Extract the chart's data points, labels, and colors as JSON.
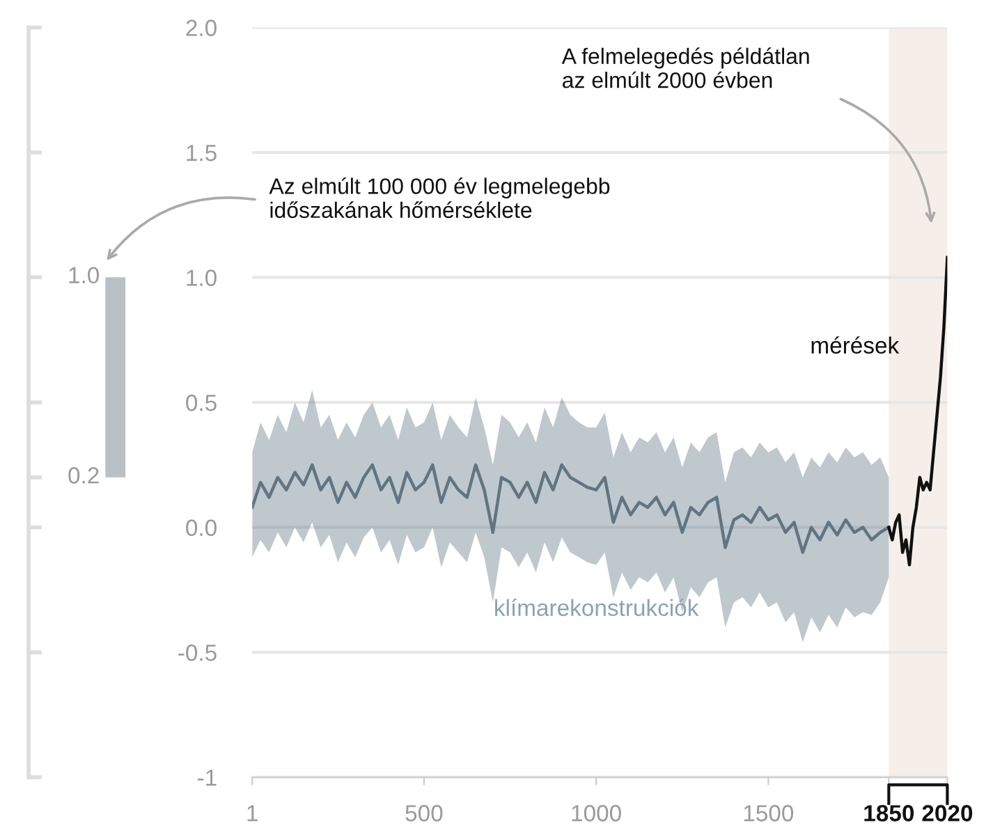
{
  "chart_data": [
    {
      "type": "other",
      "annotations": [
        "1.0",
        "0.2"
      ]
    },
    {
      "type": "line",
      "xlim": [
        1,
        2020
      ],
      "ylim": [
        -1,
        2
      ],
      "xticks": [
        1,
        500,
        1000,
        1500,
        1850,
        2020
      ],
      "yticks": [
        {
          "value": -1,
          "label": "-1"
        },
        {
          "value": -0.5,
          "label": "-0.5"
        },
        {
          "value": 0,
          "label": "0.0"
        },
        {
          "value": 0.5,
          "label": "0.5"
        },
        {
          "value": 1,
          "label": "1.0"
        },
        {
          "value": 1.5,
          "label": "1.5"
        },
        {
          "value": 2,
          "label": "2.0"
        }
      ],
      "grid": "y",
      "bands": [
        {
          "axis": "x",
          "from": 1850,
          "to": 2020,
          "color": "#f6efe9"
        }
      ],
      "annotations": [
        "A felmelegedés példátlan\naz elmúlt 2000 évben",
        "Az elmúlt 100 000 év legmelegebb\nidőszakának hőmérséklete"
      ],
      "series": [
        {
          "name": "klímarekonstrukciók",
          "color": "#5f7583",
          "x": [
            1,
            25,
            50,
            75,
            100,
            125,
            150,
            175,
            200,
            225,
            250,
            275,
            300,
            325,
            350,
            375,
            400,
            425,
            450,
            475,
            500,
            525,
            550,
            575,
            600,
            625,
            650,
            675,
            700,
            725,
            750,
            775,
            800,
            825,
            850,
            875,
            900,
            925,
            950,
            975,
            1000,
            1025,
            1050,
            1075,
            1100,
            1125,
            1150,
            1175,
            1200,
            1225,
            1250,
            1275,
            1300,
            1325,
            1350,
            1375,
            1400,
            1425,
            1450,
            1475,
            1500,
            1525,
            1550,
            1575,
            1600,
            1625,
            1650,
            1675,
            1700,
            1725,
            1750,
            1775,
            1800,
            1825,
            1850
          ],
          "values": [
            0.08,
            0.18,
            0.12,
            0.2,
            0.15,
            0.22,
            0.17,
            0.25,
            0.15,
            0.2,
            0.1,
            0.18,
            0.12,
            0.2,
            0.25,
            0.15,
            0.2,
            0.1,
            0.22,
            0.15,
            0.18,
            0.25,
            0.1,
            0.2,
            0.15,
            0.12,
            0.25,
            0.15,
            -0.02,
            0.2,
            0.18,
            0.12,
            0.18,
            0.1,
            0.22,
            0.15,
            0.25,
            0.2,
            0.18,
            0.16,
            0.15,
            0.2,
            0.02,
            0.12,
            0.05,
            0.1,
            0.08,
            0.12,
            0.05,
            0.1,
            -0.02,
            0.08,
            0.05,
            0.1,
            0.12,
            -0.08,
            0.03,
            0.05,
            0.02,
            0.08,
            0.03,
            0.05,
            -0.02,
            0.02,
            -0.1,
            0.0,
            -0.05,
            0.02,
            -0.03,
            0.03,
            -0.02,
            0.0,
            -0.05,
            -0.02,
            0.0
          ],
          "lower": [
            -0.12,
            -0.05,
            -0.1,
            -0.02,
            -0.08,
            0.0,
            -0.06,
            0.02,
            -0.08,
            -0.03,
            -0.14,
            -0.06,
            -0.12,
            -0.04,
            0.0,
            -0.1,
            -0.05,
            -0.15,
            -0.03,
            -0.1,
            -0.08,
            0.0,
            -0.16,
            -0.06,
            -0.1,
            -0.14,
            -0.02,
            -0.12,
            -0.3,
            -0.08,
            -0.1,
            -0.16,
            -0.1,
            -0.18,
            -0.06,
            -0.14,
            -0.04,
            -0.1,
            -0.12,
            -0.14,
            -0.15,
            -0.1,
            -0.28,
            -0.18,
            -0.25,
            -0.2,
            -0.22,
            -0.18,
            -0.26,
            -0.2,
            -0.34,
            -0.24,
            -0.28,
            -0.22,
            -0.2,
            -0.4,
            -0.3,
            -0.28,
            -0.32,
            -0.26,
            -0.32,
            -0.3,
            -0.38,
            -0.34,
            -0.46,
            -0.36,
            -0.42,
            -0.35,
            -0.4,
            -0.32,
            -0.36,
            -0.34,
            -0.35,
            -0.3,
            -0.2
          ],
          "upper": [
            0.3,
            0.42,
            0.35,
            0.45,
            0.38,
            0.5,
            0.42,
            0.55,
            0.4,
            0.45,
            0.35,
            0.42,
            0.36,
            0.45,
            0.5,
            0.4,
            0.45,
            0.35,
            0.48,
            0.4,
            0.42,
            0.5,
            0.35,
            0.45,
            0.4,
            0.36,
            0.52,
            0.4,
            0.25,
            0.45,
            0.42,
            0.36,
            0.42,
            0.34,
            0.48,
            0.4,
            0.52,
            0.45,
            0.42,
            0.4,
            0.4,
            0.46,
            0.28,
            0.38,
            0.3,
            0.36,
            0.34,
            0.38,
            0.3,
            0.36,
            0.24,
            0.34,
            0.3,
            0.36,
            0.38,
            0.18,
            0.3,
            0.32,
            0.28,
            0.34,
            0.3,
            0.32,
            0.26,
            0.3,
            0.2,
            0.28,
            0.24,
            0.3,
            0.26,
            0.32,
            0.28,
            0.3,
            0.25,
            0.28,
            0.2
          ]
        },
        {
          "name": "mérések",
          "color": "#111111",
          "x": [
            1850,
            1860,
            1870,
            1880,
            1890,
            1900,
            1910,
            1920,
            1930,
            1940,
            1950,
            1960,
            1970,
            1980,
            1990,
            2000,
            2010,
            2020
          ],
          "values": [
            0.0,
            -0.05,
            0.02,
            0.05,
            -0.1,
            -0.05,
            -0.15,
            0.0,
            0.08,
            0.2,
            0.15,
            0.18,
            0.15,
            0.3,
            0.45,
            0.6,
            0.8,
            1.08
          ]
        }
      ]
    }
  ]
}
